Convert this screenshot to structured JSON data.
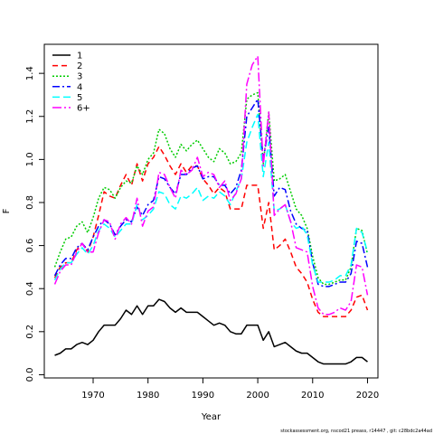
{
  "chart_data": {
    "type": "line",
    "xlabel": "Year",
    "ylabel": "F",
    "xlim": [
      1961.1,
      2021.9
    ],
    "ylim": [
      -0.015,
      1.535
    ],
    "x_ticks": [
      1970,
      1980,
      1990,
      2000,
      2010,
      2020
    ],
    "y_ticks": [
      0.0,
      0.2,
      0.4,
      0.6,
      0.8,
      1.0,
      1.2,
      1.4
    ],
    "y_tick_labels": [
      "0.0",
      "0.2",
      "0.4",
      "0.6",
      "0.8",
      "1.0",
      "1.2",
      "1.4"
    ],
    "legend_position": "top-left",
    "footer_text": "stockassessment.org, nscod21 preass, r14447 , git: c28bdc2a44ad",
    "x": [
      1963,
      1964,
      1965,
      1966,
      1967,
      1968,
      1969,
      1970,
      1971,
      1972,
      1973,
      1974,
      1975,
      1976,
      1977,
      1978,
      1979,
      1980,
      1981,
      1982,
      1983,
      1984,
      1985,
      1986,
      1987,
      1988,
      1989,
      1990,
      1991,
      1992,
      1993,
      1994,
      1995,
      1996,
      1997,
      1998,
      1999,
      2000,
      2001,
      2002,
      2003,
      2004,
      2005,
      2006,
      2007,
      2008,
      2009,
      2010,
      2011,
      2012,
      2013,
      2014,
      2015,
      2016,
      2017,
      2018,
      2019,
      2020
    ],
    "series": [
      {
        "name": "1",
        "color": "#000000",
        "dash": "",
        "values": [
          0.09,
          0.1,
          0.12,
          0.12,
          0.14,
          0.15,
          0.14,
          0.16,
          0.2,
          0.23,
          0.23,
          0.23,
          0.26,
          0.3,
          0.28,
          0.32,
          0.28,
          0.32,
          0.32,
          0.35,
          0.34,
          0.31,
          0.29,
          0.31,
          0.29,
          0.29,
          0.29,
          0.27,
          0.25,
          0.23,
          0.24,
          0.23,
          0.2,
          0.19,
          0.19,
          0.23,
          0.23,
          0.23,
          0.16,
          0.2,
          0.13,
          0.14,
          0.15,
          0.13,
          0.11,
          0.1,
          0.1,
          0.08,
          0.06,
          0.05,
          0.05,
          0.05,
          0.05,
          0.05,
          0.06,
          0.08,
          0.08,
          0.06
        ]
      },
      {
        "name": "2",
        "color": "#ff0000",
        "dash": "6,4",
        "values": [
          0.45,
          0.5,
          0.52,
          0.52,
          0.58,
          0.61,
          0.57,
          0.64,
          0.74,
          0.85,
          0.83,
          0.82,
          0.88,
          0.93,
          0.88,
          0.98,
          0.9,
          0.98,
          1.01,
          1.06,
          1.02,
          0.97,
          0.93,
          0.98,
          0.94,
          0.97,
          0.97,
          0.91,
          0.88,
          0.84,
          0.87,
          0.85,
          0.77,
          0.77,
          0.77,
          0.88,
          0.88,
          0.88,
          0.68,
          0.8,
          0.58,
          0.6,
          0.63,
          0.57,
          0.5,
          0.47,
          0.43,
          0.35,
          0.29,
          0.27,
          0.27,
          0.27,
          0.27,
          0.27,
          0.3,
          0.36,
          0.37,
          0.3
        ]
      },
      {
        "name": "3",
        "color": "#00cc00",
        "dash": "2,2",
        "values": [
          0.5,
          0.57,
          0.63,
          0.64,
          0.69,
          0.71,
          0.66,
          0.73,
          0.82,
          0.87,
          0.86,
          0.82,
          0.87,
          0.9,
          0.89,
          0.97,
          0.93,
          1.0,
          1.03,
          1.14,
          1.12,
          1.05,
          1.01,
          1.07,
          1.04,
          1.07,
          1.09,
          1.05,
          1.01,
          0.99,
          1.05,
          1.03,
          0.98,
          0.99,
          1.03,
          1.28,
          1.3,
          1.31,
          0.98,
          1.22,
          0.9,
          0.91,
          0.93,
          0.85,
          0.77,
          0.74,
          0.68,
          0.55,
          0.45,
          0.42,
          0.42,
          0.43,
          0.44,
          0.44,
          0.5,
          0.68,
          0.67,
          0.56
        ]
      },
      {
        "name": "4",
        "color": "#0000ff",
        "dash": "8,3,2,3",
        "values": [
          0.46,
          0.51,
          0.54,
          0.54,
          0.59,
          0.61,
          0.58,
          0.64,
          0.69,
          0.72,
          0.7,
          0.65,
          0.69,
          0.72,
          0.71,
          0.78,
          0.74,
          0.79,
          0.81,
          0.92,
          0.91,
          0.87,
          0.84,
          0.93,
          0.93,
          0.96,
          0.97,
          0.91,
          0.92,
          0.92,
          0.88,
          0.88,
          0.84,
          0.87,
          0.95,
          1.2,
          1.24,
          1.28,
          1.0,
          1.15,
          0.83,
          0.87,
          0.86,
          0.76,
          0.7,
          0.68,
          0.67,
          0.52,
          0.42,
          0.41,
          0.41,
          0.42,
          0.43,
          0.43,
          0.47,
          0.62,
          0.61,
          0.5
        ]
      },
      {
        "name": "5",
        "color": "#00ffff",
        "dash": "8,4",
        "values": [
          0.44,
          0.49,
          0.52,
          0.52,
          0.56,
          0.59,
          0.56,
          0.6,
          0.67,
          0.7,
          0.68,
          0.64,
          0.67,
          0.7,
          0.7,
          0.79,
          0.72,
          0.74,
          0.77,
          0.85,
          0.84,
          0.79,
          0.77,
          0.83,
          0.82,
          0.84,
          0.87,
          0.81,
          0.83,
          0.82,
          0.85,
          0.83,
          0.79,
          0.85,
          0.91,
          1.08,
          1.15,
          1.21,
          0.92,
          1.08,
          0.76,
          0.77,
          0.79,
          0.71,
          0.68,
          0.69,
          0.65,
          0.51,
          0.43,
          0.43,
          0.43,
          0.44,
          0.46,
          0.46,
          0.51,
          0.68,
          0.66,
          0.57
        ]
      },
      {
        "name": "6+",
        "color": "#ff00ff",
        "dash": "10,3,2,3",
        "values": [
          0.42,
          0.48,
          0.51,
          0.51,
          0.57,
          0.61,
          0.57,
          0.57,
          0.66,
          0.72,
          0.71,
          0.63,
          0.7,
          0.73,
          0.7,
          0.82,
          0.69,
          0.76,
          0.78,
          0.94,
          0.93,
          0.87,
          0.82,
          0.95,
          0.93,
          0.95,
          1.01,
          0.92,
          0.94,
          0.93,
          0.87,
          0.9,
          0.81,
          0.84,
          0.91,
          1.35,
          1.44,
          1.48,
          0.97,
          1.22,
          0.74,
          0.77,
          0.79,
          0.71,
          0.59,
          0.58,
          0.57,
          0.41,
          0.31,
          0.28,
          0.28,
          0.29,
          0.31,
          0.3,
          0.34,
          0.51,
          0.5,
          0.37
        ]
      }
    ]
  }
}
